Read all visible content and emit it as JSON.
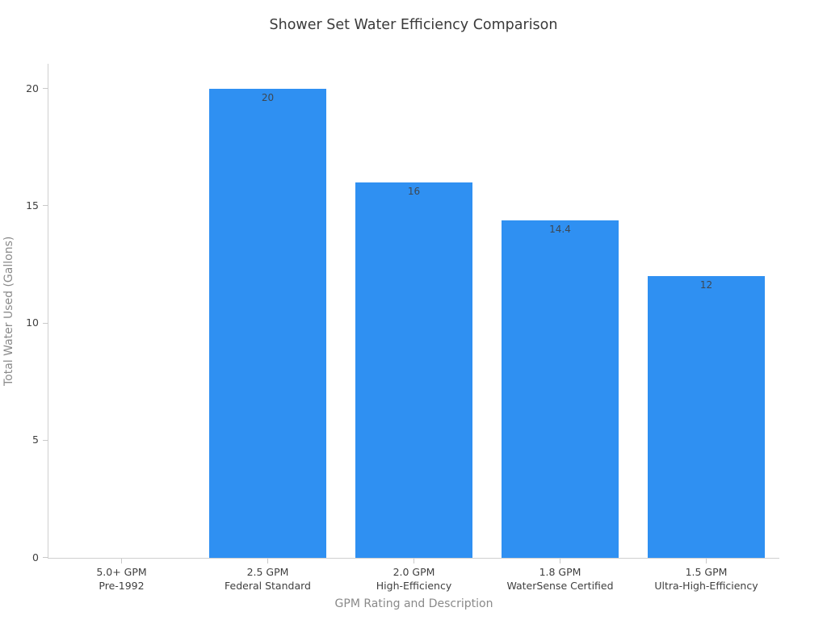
{
  "chart_data": {
    "type": "bar",
    "title": "Shower Set Water Efficiency Comparison",
    "xlabel": "GPM Rating and Description",
    "ylabel": "Total Water Used (Gallons)",
    "categories": [
      [
        "5.0+ GPM",
        "Pre-1992"
      ],
      [
        "2.5 GPM",
        "Federal Standard"
      ],
      [
        "2.0 GPM",
        "High-Efficiency"
      ],
      [
        "1.8 GPM",
        "WaterSense Certified"
      ],
      [
        "1.5 GPM",
        "Ultra-High-Efficiency"
      ]
    ],
    "values": [
      0,
      20,
      16,
      14.4,
      12
    ],
    "bar_labels": [
      "",
      "20",
      "16",
      "14.4",
      "12"
    ],
    "yticks": [
      0,
      5,
      10,
      15,
      20
    ],
    "ylim": [
      0,
      21.07
    ],
    "bar_color": "#2f90f2",
    "value_label_color": "#3d4752",
    "axis_line_color": "#cfcfcf",
    "grid": false,
    "legend": false
  }
}
